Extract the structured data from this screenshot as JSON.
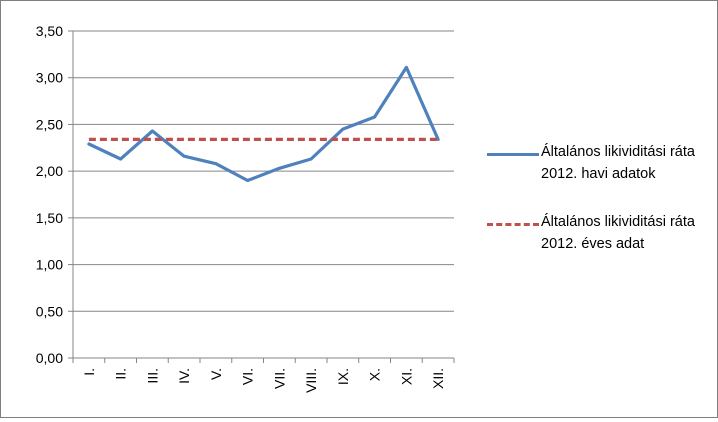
{
  "chart_data": {
    "type": "line",
    "categories": [
      "I.",
      "II.",
      "III.",
      "IV.",
      "V.",
      "VI.",
      "VII.",
      "VIII.",
      "IX.",
      "X.",
      "XI.",
      "XII."
    ],
    "series": [
      {
        "name": "Általános likividitási ráta 2012. havi adatok",
        "values": [
          2.29,
          2.13,
          2.43,
          2.16,
          2.08,
          1.9,
          2.03,
          2.13,
          2.45,
          2.58,
          3.11,
          2.34
        ],
        "color": "#4f81bd",
        "style": "solid"
      },
      {
        "name": "Általános likividitási ráta 2012. éves adat",
        "values": [
          2.34,
          2.34,
          2.34,
          2.34,
          2.34,
          2.34,
          2.34,
          2.34,
          2.34,
          2.34,
          2.34,
          2.34
        ],
        "color": "#c0504d",
        "style": "dashed"
      }
    ],
    "yticks": [
      "0,00",
      "0,50",
      "1,00",
      "1,50",
      "2,00",
      "2,50",
      "3,00",
      "3,50"
    ],
    "ylim": [
      0,
      3.5
    ],
    "grid": true,
    "legend_position": "right",
    "title": "",
    "xlabel": "",
    "ylabel": ""
  },
  "legend": {
    "items": [
      {
        "label": "Általános likividitási ráta 2012. havi adatok"
      },
      {
        "label": "Általános likividitási ráta 2012. éves adat"
      }
    ]
  }
}
